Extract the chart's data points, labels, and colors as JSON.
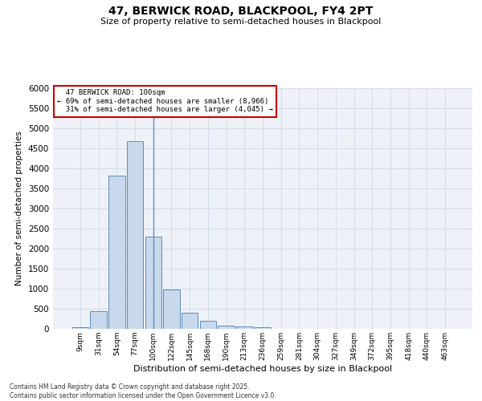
{
  "title": "47, BERWICK ROAD, BLACKPOOL, FY4 2PT",
  "subtitle": "Size of property relative to semi-detached houses in Blackpool",
  "xlabel": "Distribution of semi-detached houses by size in Blackpool",
  "ylabel": "Number of semi-detached properties",
  "categories": [
    "9sqm",
    "31sqm",
    "54sqm",
    "77sqm",
    "100sqm",
    "122sqm",
    "145sqm",
    "168sqm",
    "190sqm",
    "213sqm",
    "236sqm",
    "259sqm",
    "281sqm",
    "304sqm",
    "327sqm",
    "349sqm",
    "372sqm",
    "395sqm",
    "418sqm",
    "440sqm",
    "463sqm"
  ],
  "values": [
    50,
    440,
    3820,
    4680,
    2300,
    980,
    410,
    200,
    90,
    65,
    50,
    0,
    0,
    0,
    0,
    0,
    0,
    0,
    0,
    0,
    0
  ],
  "bar_color": "#c9d9ed",
  "bar_edge_color": "#5b8db8",
  "marker_line_index": 4,
  "marker_label": "47 BERWICK ROAD: 100sqm",
  "pct_smaller": "69%",
  "pct_smaller_n": "8,966",
  "pct_larger": "31%",
  "pct_larger_n": "4,045",
  "annotation_box_color": "#cc0000",
  "ylim": [
    0,
    6000
  ],
  "yticks": [
    0,
    500,
    1000,
    1500,
    2000,
    2500,
    3000,
    3500,
    4000,
    4500,
    5000,
    5500,
    6000
  ],
  "grid_color": "#d0d8e8",
  "bg_color": "#eef2f8",
  "title_fontsize": 10,
  "subtitle_fontsize": 8,
  "footnote": "Contains HM Land Registry data © Crown copyright and database right 2025.\nContains public sector information licensed under the Open Government Licence v3.0."
}
